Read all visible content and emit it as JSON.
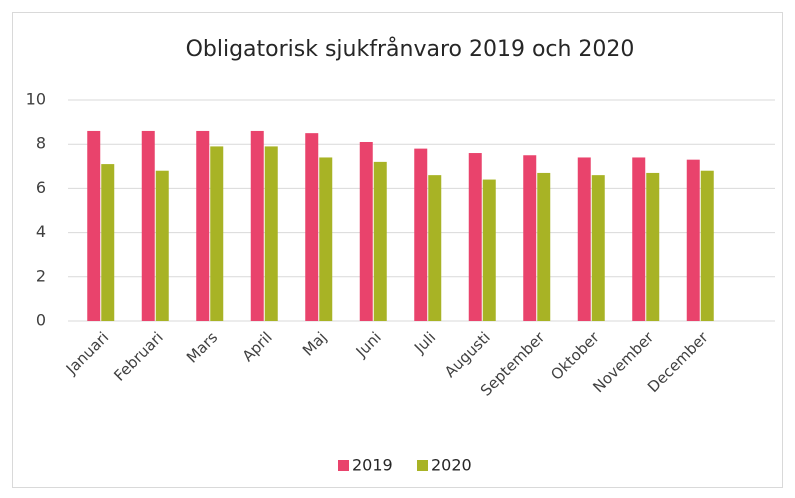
{
  "chart_data": {
    "type": "bar",
    "title": "Obligatorisk sjukfrånvaro 2019 och 2020",
    "categories": [
      "Januari",
      "Februari",
      "Mars",
      "April",
      "Maj",
      "Juni",
      "Juli",
      "Augusti",
      "September",
      "Oktober",
      "November",
      "December"
    ],
    "series": [
      {
        "name": "2019",
        "color": "#e9436c",
        "values": [
          8.6,
          8.6,
          8.6,
          8.6,
          8.5,
          8.1,
          7.8,
          7.6,
          7.5,
          7.4,
          7.4,
          7.3
        ]
      },
      {
        "name": "2020",
        "color": "#a8b325",
        "values": [
          7.1,
          6.8,
          7.9,
          7.9,
          7.4,
          7.2,
          6.6,
          6.4,
          6.7,
          6.6,
          6.7,
          6.8
        ]
      }
    ],
    "ylim": [
      0,
      10
    ],
    "yticks": [
      0,
      2,
      4,
      6,
      8,
      10
    ],
    "grid": true,
    "legend": "bottom"
  }
}
